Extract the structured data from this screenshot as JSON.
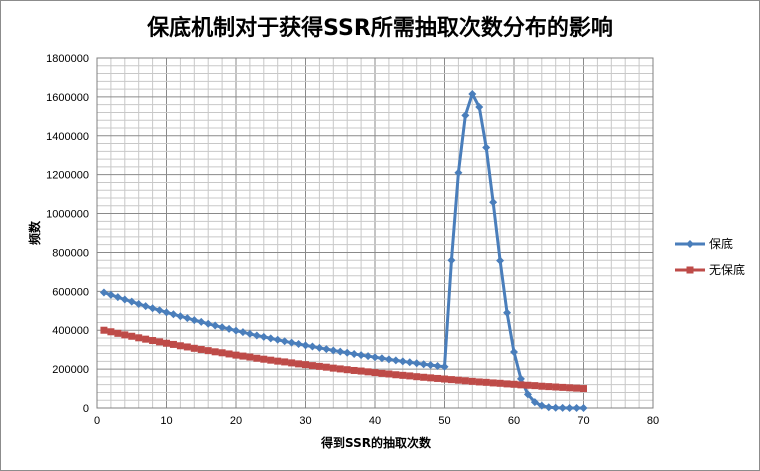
{
  "chart_data": {
    "type": "line",
    "title": "保底机制对于获得SSR所需抽取次数分布的影响",
    "xlabel": "得到SSR的抽取次数",
    "ylabel": "频数",
    "xlim": [
      0,
      80
    ],
    "ylim": [
      0,
      1800000
    ],
    "x_ticks": [
      "0",
      "10",
      "20",
      "30",
      "40",
      "50",
      "60",
      "70",
      "80"
    ],
    "y_ticks": [
      "0",
      "200000",
      "400000",
      "600000",
      "800000",
      "1000000",
      "1200000",
      "1400000",
      "1600000",
      "1800000"
    ],
    "grid": true,
    "legend_position": "right",
    "series": [
      {
        "name": "保底",
        "color": "#4a7ebb",
        "marker": "diamond",
        "x": [
          1,
          2,
          3,
          4,
          5,
          6,
          7,
          8,
          9,
          10,
          11,
          12,
          13,
          14,
          15,
          16,
          17,
          18,
          19,
          20,
          21,
          22,
          23,
          24,
          25,
          26,
          27,
          28,
          29,
          30,
          31,
          32,
          33,
          34,
          35,
          36,
          37,
          38,
          39,
          40,
          41,
          42,
          43,
          44,
          45,
          46,
          47,
          48,
          49,
          50,
          51,
          52,
          53,
          54,
          55,
          56,
          57,
          58,
          59,
          60,
          61,
          62,
          63,
          64,
          65,
          66,
          67,
          68,
          69,
          70
        ],
        "values": [
          594000,
          582000,
          570000,
          558000,
          547000,
          535000,
          524000,
          513000,
          503000,
          492000,
          482000,
          472000,
          462000,
          452000,
          443000,
          433000,
          424000,
          415000,
          407000,
          398000,
          390000,
          381000,
          373000,
          366000,
          358000,
          351000,
          343000,
          336000,
          329000,
          322000,
          316000,
          309000,
          303000,
          296000,
          290000,
          284000,
          278000,
          272000,
          267000,
          261000,
          256000,
          250000,
          245000,
          240000,
          235000,
          230000,
          225000,
          221000,
          216000,
          212000,
          760000,
          1210000,
          1505000,
          1615000,
          1548000,
          1340000,
          1058000,
          758000,
          490000,
          288000,
          150000,
          70000,
          30000,
          12000,
          4000,
          1500,
          600,
          200,
          80,
          30
        ]
      },
      {
        "name": "无保底",
        "color": "#be4b48",
        "marker": "square",
        "x": [
          1,
          2,
          3,
          4,
          5,
          6,
          7,
          8,
          9,
          10,
          11,
          12,
          13,
          14,
          15,
          16,
          17,
          18,
          19,
          20,
          21,
          22,
          23,
          24,
          25,
          26,
          27,
          28,
          29,
          30,
          31,
          32,
          33,
          34,
          35,
          36,
          37,
          38,
          39,
          40,
          41,
          42,
          43,
          44,
          45,
          46,
          47,
          48,
          49,
          50,
          51,
          52,
          53,
          54,
          55,
          56,
          57,
          58,
          59,
          60,
          61,
          62,
          63,
          64,
          65,
          66,
          67,
          68,
          69,
          70
        ],
        "values": [
          400000,
          392000,
          384000,
          376000,
          369000,
          361000,
          354000,
          347000,
          340000,
          333000,
          327000,
          320000,
          314000,
          307000,
          301000,
          295000,
          289000,
          284000,
          278000,
          272000,
          267000,
          262000,
          256000,
          251000,
          246000,
          241000,
          237000,
          232000,
          227000,
          223000,
          218000,
          214000,
          210000,
          205000,
          201000,
          197000,
          193000,
          190000,
          186000,
          182000,
          178000,
          175000,
          171000,
          168000,
          165000,
          161000,
          158000,
          155000,
          152000,
          149000,
          146000,
          143000,
          140000,
          137000,
          134000,
          132000,
          129000,
          127000,
          124000,
          122000,
          119000,
          117000,
          115000,
          112000,
          110000,
          108000,
          106000,
          104000,
          102000,
          100000
        ]
      }
    ]
  }
}
